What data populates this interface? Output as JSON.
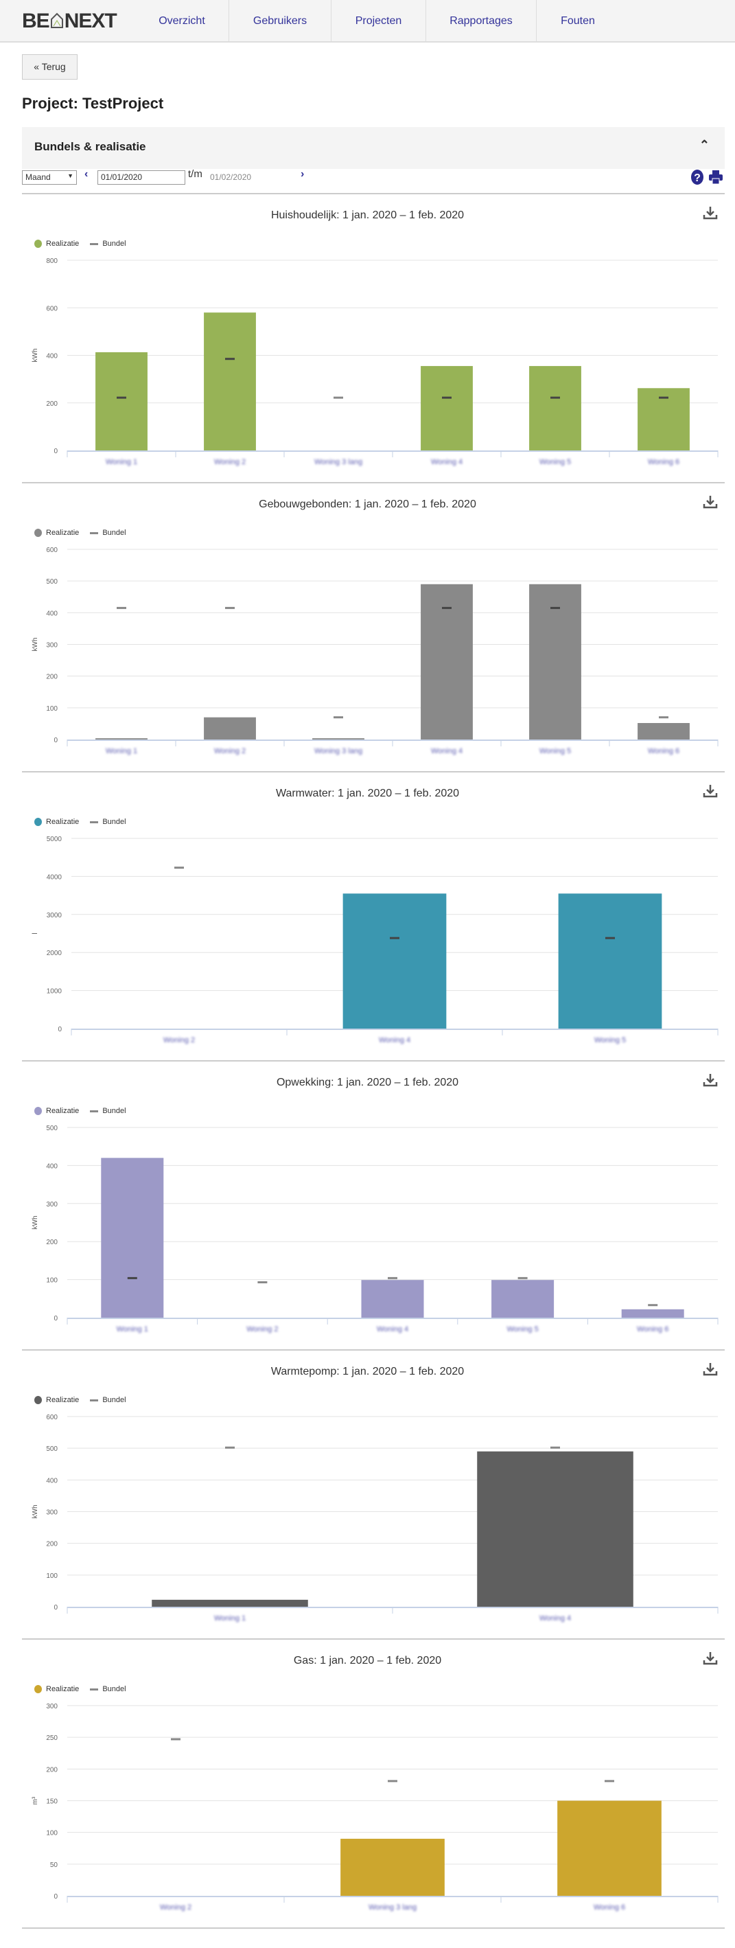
{
  "nav": {
    "logo": "BE NEXT",
    "items": [
      "Overzicht",
      "Gebruikers",
      "Projecten",
      "Rapportages",
      "Fouten"
    ]
  },
  "back_label": "« Terug",
  "page_title": "Project: TestProject",
  "section": {
    "title": "Bundels & realisatie",
    "collapse_icon": "chevron-up-icon"
  },
  "controls": {
    "period": "Maand",
    "from": "01/01/2020",
    "to_label": "t/m",
    "to": "01/02/2020",
    "prev_icon": "chevron-left-icon",
    "next_icon": "chevron-right-icon",
    "help_icon": "question-icon",
    "print_icon": "printer-icon"
  },
  "legend": {
    "realisatie": "Realizatie",
    "bundel": "Bundel"
  },
  "chart_data": [
    {
      "type": "bar",
      "title": "Huishoudelijk: 1 jan. 2020 – 1 feb. 2020",
      "ylabel": "kWh",
      "ylim": [
        0,
        800
      ],
      "yticks": [
        0,
        200,
        400,
        600,
        800
      ],
      "color": "#97b356",
      "categories": [
        "Woning 1",
        "Woning 2",
        "Woning 3 lang",
        "Woning 4",
        "Woning 5",
        "Woning 6"
      ],
      "series": [
        {
          "name": "Realizatie",
          "values": [
            413,
            580,
            0,
            355,
            355,
            262
          ]
        },
        {
          "name": "Bundel",
          "values": [
            222,
            385,
            222,
            222,
            222,
            222
          ]
        }
      ]
    },
    {
      "type": "bar",
      "title": "Gebouwgebonden: 1 jan. 2020 – 1 feb. 2020",
      "ylabel": "kWh",
      "ylim": [
        0,
        600
      ],
      "yticks": [
        0,
        100,
        200,
        300,
        400,
        500,
        600
      ],
      "color": "#898989",
      "categories": [
        "Woning 1",
        "Woning 2",
        "Woning 3 lang",
        "Woning 4",
        "Woning 5",
        "Woning 6"
      ],
      "series": [
        {
          "name": "Realizatie",
          "values": [
            4,
            70,
            4,
            490,
            490,
            52
          ]
        },
        {
          "name": "Bundel",
          "values": [
            415,
            415,
            70,
            415,
            415,
            70
          ]
        }
      ]
    },
    {
      "type": "bar",
      "title": "Warmwater: 1 jan. 2020 – 1 feb. 2020",
      "ylabel": "l",
      "ylim": [
        0,
        5000
      ],
      "yticks": [
        0,
        1000,
        2000,
        3000,
        4000,
        5000
      ],
      "color": "#3b97b0",
      "categories": [
        "Woning 2",
        "Woning 4",
        "Woning 5"
      ],
      "series": [
        {
          "name": "Realizatie",
          "values": [
            0,
            3550,
            3550
          ]
        },
        {
          "name": "Bundel",
          "values": [
            4230,
            2380,
            2380
          ]
        }
      ]
    },
    {
      "type": "bar",
      "title": "Opwekking: 1 jan. 2020 – 1 feb. 2020",
      "ylabel": "kWh",
      "ylim": [
        0,
        500
      ],
      "yticks": [
        0,
        100,
        200,
        300,
        400,
        500
      ],
      "color": "#9c99c7",
      "categories": [
        "Woning 1",
        "Woning 2",
        "Woning 4",
        "Woning 5",
        "Woning 6"
      ],
      "series": [
        {
          "name": "Realizatie",
          "values": [
            420,
            0,
            99,
            99,
            22
          ]
        },
        {
          "name": "Bundel",
          "values": [
            104,
            93,
            104,
            104,
            33
          ]
        }
      ]
    },
    {
      "type": "bar",
      "title": "Warmtepomp: 1 jan. 2020 – 1 feb. 2020",
      "ylabel": "kWh",
      "ylim": [
        0,
        600
      ],
      "yticks": [
        0,
        100,
        200,
        300,
        400,
        500,
        600
      ],
      "color": "#5f5f5f",
      "categories": [
        "Woning 1",
        "Woning 4"
      ],
      "series": [
        {
          "name": "Realizatie",
          "values": [
            22,
            490
          ]
        },
        {
          "name": "Bundel",
          "values": [
            502,
            502
          ]
        }
      ]
    },
    {
      "type": "bar",
      "title": "Gas: 1 jan. 2020 – 1 feb. 2020",
      "ylabel": "m³",
      "ylim": [
        0,
        300
      ],
      "yticks": [
        0,
        50,
        100,
        150,
        200,
        250,
        300
      ],
      "color": "#cca62e",
      "categories": [
        "Woning 2",
        "Woning 3 lang",
        "Woning 6"
      ],
      "series": [
        {
          "name": "Realizatie",
          "values": [
            0,
            90,
            150
          ]
        },
        {
          "name": "Bundel",
          "values": [
            247,
            181,
            181
          ]
        }
      ]
    }
  ]
}
